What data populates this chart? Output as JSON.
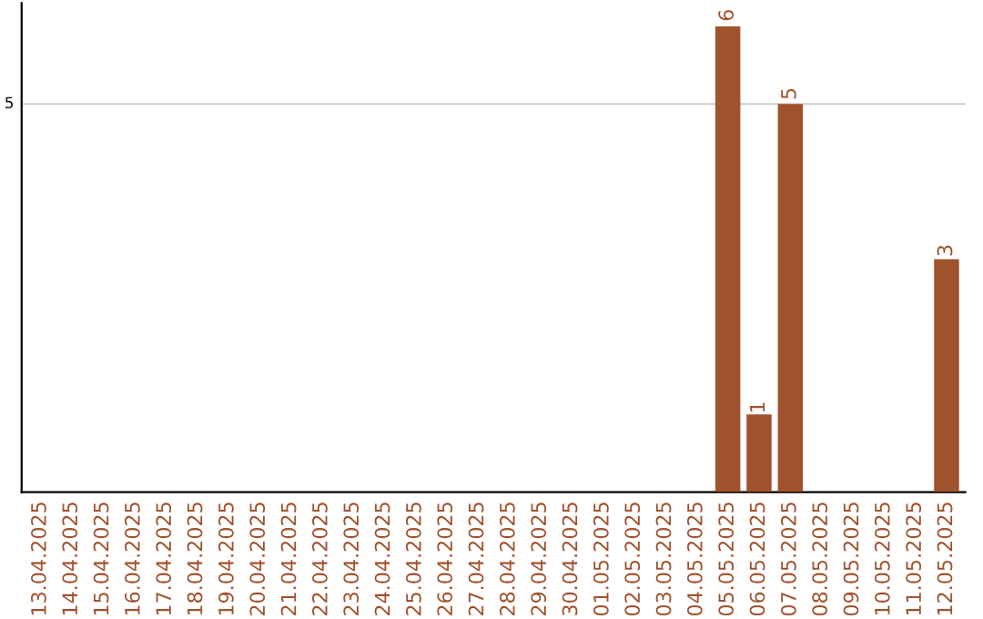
{
  "chart_data": {
    "type": "bar",
    "categories": [
      "13.04.2025",
      "14.04.2025",
      "15.04.2025",
      "16.04.2025",
      "17.04.2025",
      "18.04.2025",
      "19.04.2025",
      "20.04.2025",
      "21.04.2025",
      "22.04.2025",
      "23.04.2025",
      "24.04.2025",
      "25.04.2025",
      "26.04.2025",
      "27.04.2025",
      "28.04.2025",
      "29.04.2025",
      "30.04.2025",
      "01.05.2025",
      "02.05.2025",
      "03.05.2025",
      "04.05.2025",
      "05.05.2025",
      "06.05.2025",
      "07.05.2025",
      "08.05.2025",
      "09.05.2025",
      "10.05.2025",
      "11.05.2025",
      "12.05.2025"
    ],
    "values": [
      null,
      null,
      null,
      null,
      null,
      null,
      null,
      null,
      null,
      null,
      null,
      null,
      null,
      null,
      null,
      null,
      null,
      null,
      null,
      null,
      null,
      null,
      6,
      1,
      5,
      null,
      null,
      null,
      null,
      3
    ],
    "value_labels": [
      null,
      null,
      null,
      null,
      null,
      null,
      null,
      null,
      null,
      null,
      null,
      null,
      null,
      null,
      null,
      null,
      null,
      null,
      null,
      null,
      null,
      null,
      "6",
      "1",
      "5",
      null,
      null,
      null,
      null,
      "3"
    ],
    "color": "#a0522d",
    "ref_lines": [
      {
        "axis": "y",
        "value": 5,
        "label": "5",
        "color": "#cccccc"
      }
    ]
  }
}
